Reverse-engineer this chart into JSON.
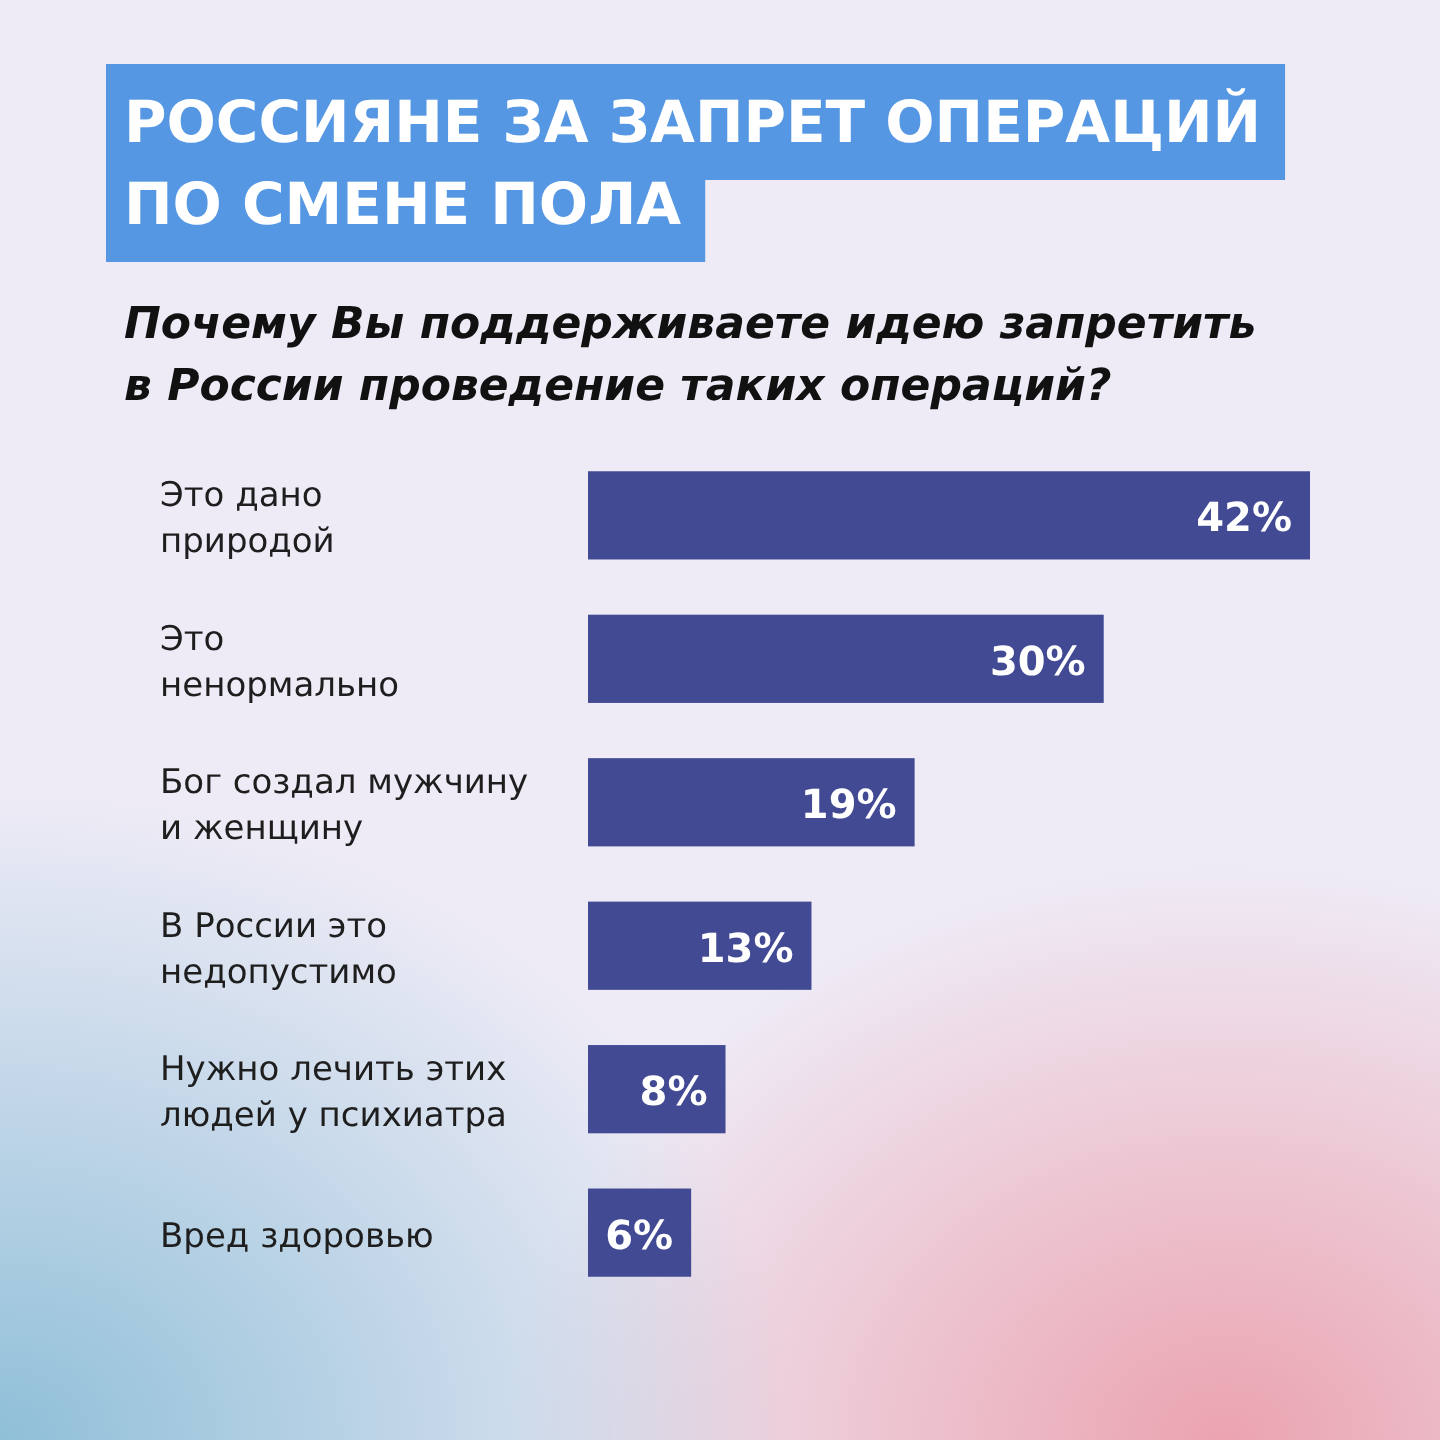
{
  "chart_data": {
    "type": "bar",
    "orientation": "horizontal",
    "title": "РОССИЯНЕ ЗА ЗАПРЕТ ОПЕРАЦИЙ\nПО СМЕНЕ ПОЛА",
    "subtitle": "Почему Вы поддерживаете идею запретить\nв России проведение таких операций?",
    "categories": [
      "Это дано\nприродой",
      "Это\nненормально",
      "Бог создал мужчину\nи женщину",
      "В России это\nнедопустимо",
      "Нужно лечить этих\nлюдей у психиатра",
      "Вред здоровью"
    ],
    "values": [
      42,
      30,
      19,
      13,
      8,
      6
    ],
    "value_labels": [
      "42%",
      "30%",
      "19%",
      "13%",
      "8%",
      "6%"
    ],
    "color": "#414a93"
  }
}
